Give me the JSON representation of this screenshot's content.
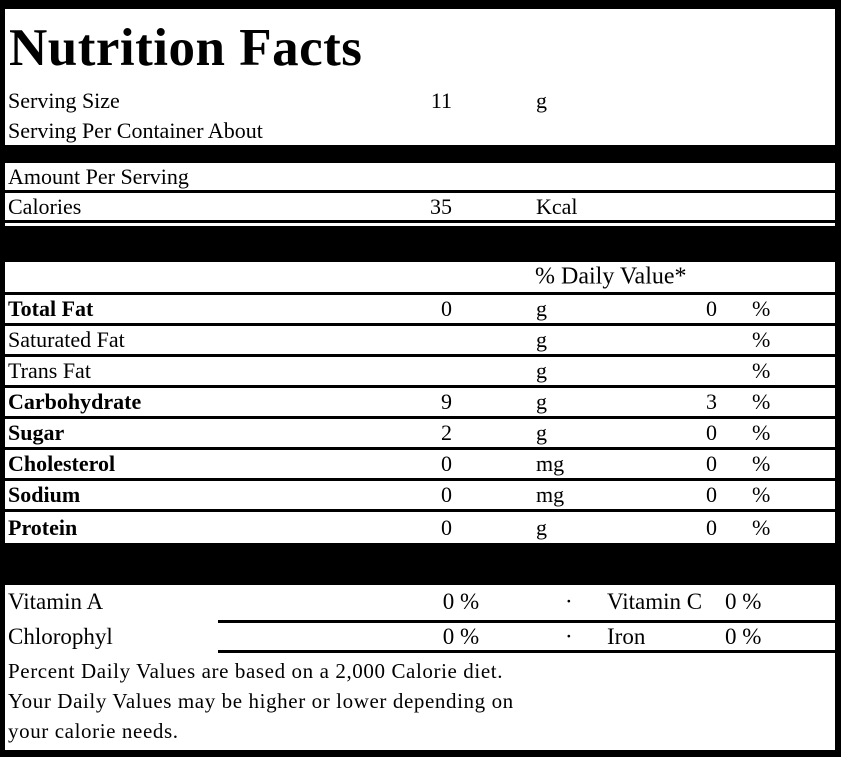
{
  "label": {
    "title": "Nutrition Facts",
    "serving": {
      "size_label": "Serving Size",
      "size_value": "11",
      "size_unit": "g",
      "per_container_label": "Serving Per Container About"
    },
    "amount_per_serving_label": "Amount Per Serving",
    "calories": {
      "label": "Calories",
      "value": "35",
      "unit": "Kcal"
    },
    "daily_value_header": "% Daily Value*",
    "nutrients": [
      {
        "name": "Total Fat",
        "amount": "0",
        "unit": "g",
        "dv": "0",
        "pct": "%"
      },
      {
        "name": "Saturated Fat",
        "amount": "",
        "unit": "g",
        "dv": "",
        "pct": "%"
      },
      {
        "name": "Trans Fat",
        "amount": "",
        "unit": "g",
        "dv": "",
        "pct": "%"
      },
      {
        "name": "Carbohydrate",
        "amount": "9",
        "unit": "g",
        "dv": "3",
        "pct": "%"
      },
      {
        "name": "Sugar",
        "amount": "2",
        "unit": "g",
        "dv": "0",
        "pct": "%"
      },
      {
        "name": "Cholesterol",
        "amount": "0",
        "unit": "mg",
        "dv": "0",
        "pct": "%"
      },
      {
        "name": "Sodium",
        "amount": "0",
        "unit": "mg",
        "dv": "0",
        "pct": "%"
      },
      {
        "name": "Protein",
        "amount": "0",
        "unit": "g",
        "dv": "0",
        "pct": "%"
      }
    ],
    "micronutrients": [
      {
        "name": "Vitamin A",
        "value": "0 %",
        "separator": "·",
        "name2": "Vitamin C",
        "value2": "0 %"
      },
      {
        "name": "Chlorophyl",
        "value": "0 %",
        "separator": "·",
        "name2": "Iron",
        "value2": "0 %"
      }
    ],
    "footnote_lines": [
      "Percent Daily Values are based on a 2,000 Calorie diet.",
      "Your Daily Values may be higher or lower depending on",
      "your calorie needs."
    ],
    "colors": {
      "ink": "#000000",
      "background": "#ffffff"
    }
  }
}
